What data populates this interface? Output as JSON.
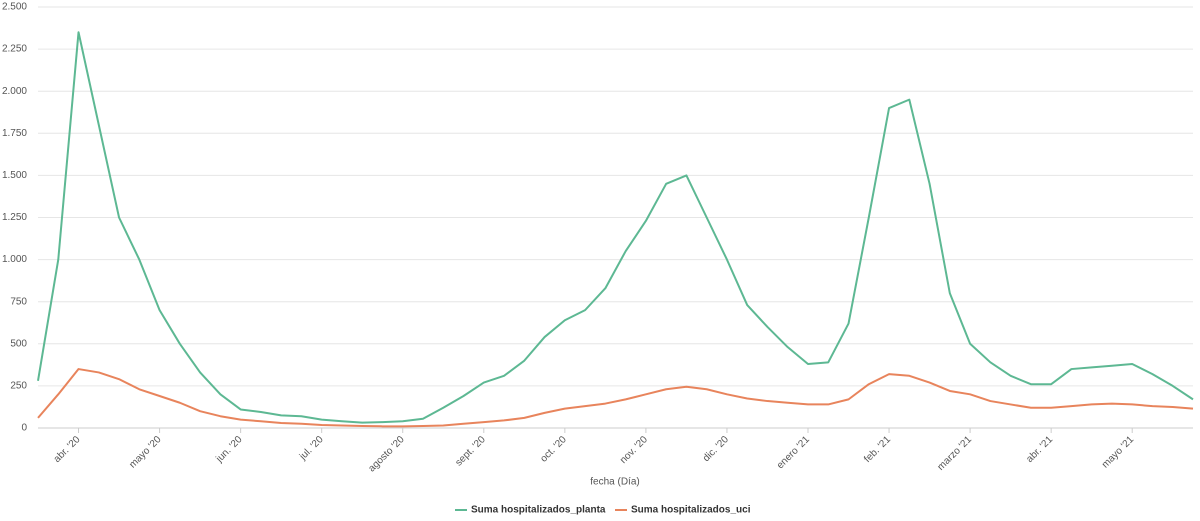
{
  "chart_data": {
    "type": "line",
    "x_label": "fecha (Día)",
    "categories": [
      null,
      null,
      "abr. '20",
      null,
      null,
      null,
      "mayo '20",
      null,
      null,
      null,
      "jun. '20",
      null,
      null,
      null,
      "jul. '20",
      null,
      null,
      null,
      "agosto '20",
      null,
      null,
      null,
      "sept. '20",
      null,
      null,
      null,
      "oct. '20",
      null,
      null,
      null,
      "nov. '20",
      null,
      null,
      null,
      "dic. '20",
      null,
      null,
      null,
      "enero '21",
      null,
      null,
      null,
      "feb. '21",
      null,
      null,
      null,
      "marzo '21",
      null,
      null,
      null,
      "abr. '21",
      null,
      null,
      null,
      "mayo '21",
      null,
      null,
      null
    ],
    "series": [
      {
        "name": "Suma hospitalizados_planta",
        "color": "#5db893",
        "values": [
          280,
          1000,
          2350,
          1800,
          1250,
          1000,
          700,
          500,
          330,
          200,
          110,
          95,
          75,
          70,
          50,
          40,
          32,
          35,
          40,
          55,
          120,
          190,
          270,
          310,
          400,
          540,
          640,
          700,
          830,
          1050,
          1230,
          1450,
          1500,
          1250,
          1000,
          730,
          600,
          480,
          380,
          390,
          620,
          1250,
          1900,
          1950,
          1450,
          800,
          500,
          390,
          310,
          260,
          260,
          350,
          360,
          370,
          380,
          320,
          250,
          170
        ]
      },
      {
        "name": "Suma hospitalizados_uci",
        "color": "#e8845c",
        "values": [
          60,
          200,
          350,
          330,
          290,
          230,
          190,
          150,
          100,
          70,
          50,
          40,
          30,
          25,
          18,
          15,
          12,
          10,
          10,
          12,
          15,
          25,
          35,
          45,
          60,
          90,
          115,
          130,
          145,
          170,
          200,
          230,
          245,
          230,
          200,
          175,
          160,
          150,
          140,
          140,
          170,
          260,
          320,
          310,
          270,
          220,
          200,
          160,
          140,
          120,
          120,
          130,
          140,
          145,
          140,
          130,
          125,
          115
        ]
      }
    ],
    "ylim": [
      0,
      2500
    ],
    "yticks": [
      0,
      250,
      500,
      750,
      {
        "value": 1000,
        "label": "1.000"
      },
      {
        "value": 1250,
        "label": "1.250"
      },
      {
        "value": 1500,
        "label": "1.500"
      },
      {
        "value": 1750,
        "label": "1.750"
      },
      {
        "value": 2000,
        "label": "2.000"
      },
      {
        "value": 2250,
        "label": "2.250"
      },
      {
        "value": 2500,
        "label": "2.500"
      }
    ],
    "grid": true,
    "legend": "bottom"
  }
}
